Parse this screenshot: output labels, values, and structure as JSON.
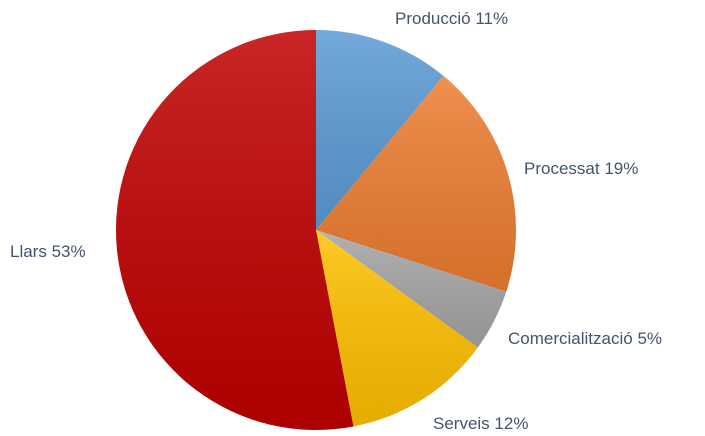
{
  "chart_data": {
    "type": "pie",
    "categories": [
      "Producció",
      "Processat",
      "Comercialització",
      "Serveis",
      "Llars"
    ],
    "values": [
      11,
      19,
      5,
      12,
      53
    ],
    "value_labels": [
      "11%",
      "19%",
      "5%",
      "12%",
      "53%"
    ],
    "colors": [
      "#5b9bd5",
      "#ed7d31",
      "#a5a5a5",
      "#ffc000",
      "#c00000"
    ]
  }
}
